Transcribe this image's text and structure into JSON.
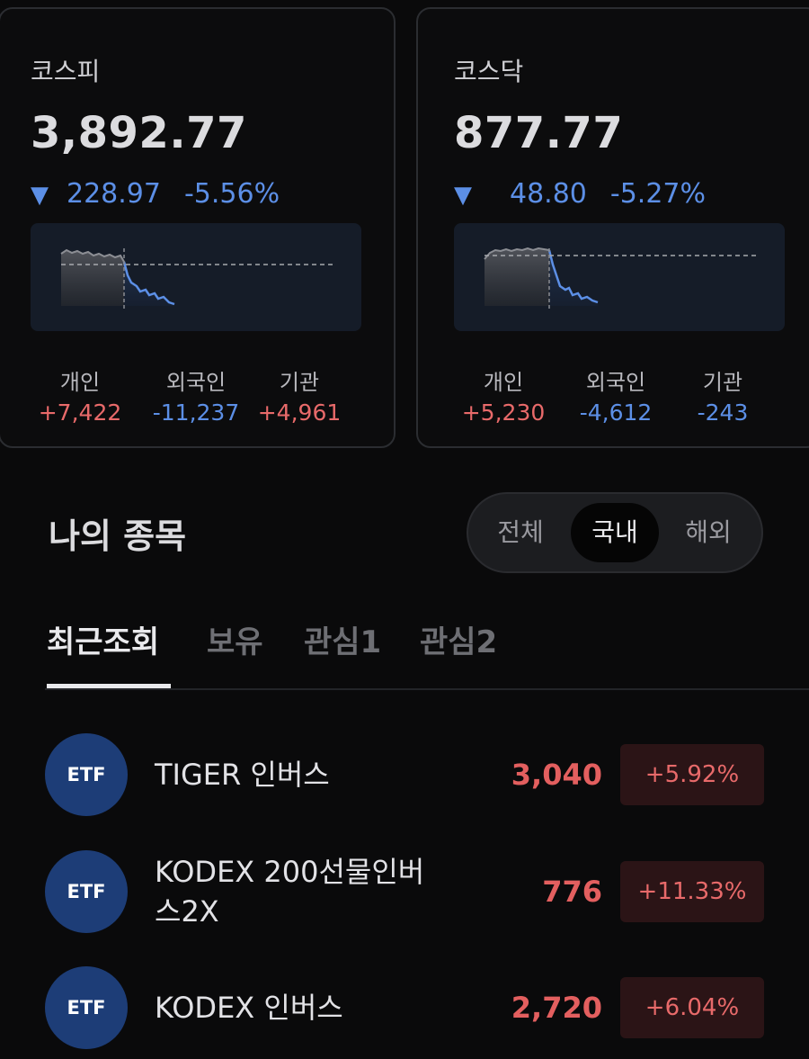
{
  "indices": [
    {
      "name": "코스피",
      "value": "3,892.77",
      "arrow": "▼",
      "change": "228.97",
      "change_pct": "-5.56%",
      "flows": {
        "individual": {
          "label": "개인",
          "value": "+7,422"
        },
        "foreign": {
          "label": "외국인",
          "value": "-11,237"
        },
        "institution": {
          "label": "기관",
          "value": "+4,961"
        }
      }
    },
    {
      "name": "코스닥",
      "value": "877.77",
      "arrow": "▼",
      "change": "48.80",
      "change_pct": "-5.27%",
      "flows": {
        "individual": {
          "label": "개인",
          "value": "+5,230"
        },
        "foreign": {
          "label": "외국인",
          "value": "-4,612"
        },
        "institution": {
          "label": "기관",
          "value": "-243"
        }
      }
    }
  ],
  "my_stocks": {
    "title": "나의 종목",
    "market_filter": {
      "options": [
        "전체",
        "국내",
        "해외"
      ],
      "selected": "국내"
    },
    "tabs": [
      "최근조회",
      "보유",
      "관심1",
      "관심2"
    ],
    "active_tab": "최근조회",
    "items": [
      {
        "badge": "ETF",
        "name": "TIGER 인버스",
        "price": "3,040",
        "change_pct": "+5.92%"
      },
      {
        "badge": "ETF",
        "name": "KODEX 200선물인버스2X",
        "price": "776",
        "change_pct": "+11.33%"
      },
      {
        "badge": "ETF",
        "name": "KODEX 인버스",
        "price": "2,720",
        "change_pct": "+6.04%"
      }
    ]
  },
  "colors": {
    "up": "#e86a6a",
    "down": "#5c8fe6",
    "etf_badge": "#1d3d77",
    "background": "#0a0a0b"
  }
}
